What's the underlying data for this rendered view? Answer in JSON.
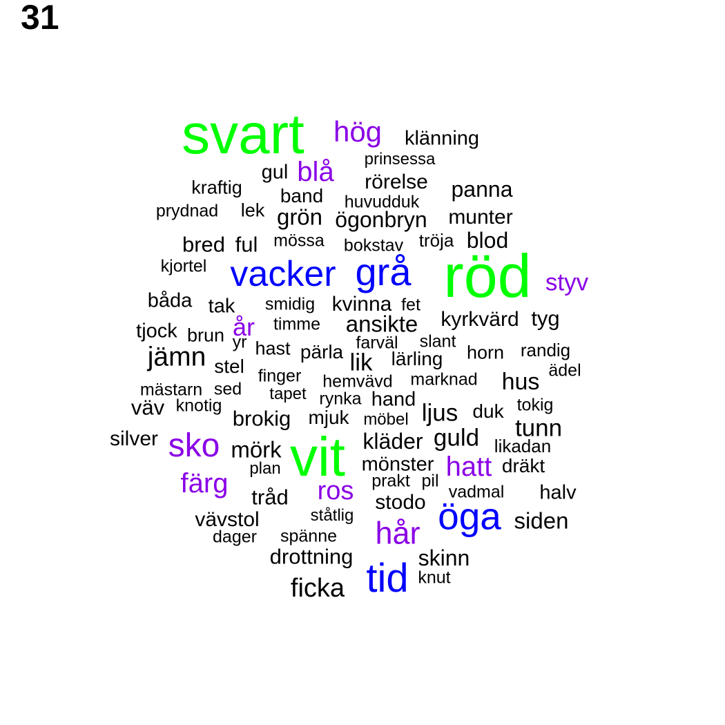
{
  "page_number": "31",
  "palette": {
    "green": "#00ff00",
    "blue": "#0000ff",
    "purple": "#8a00e6",
    "black": "#000000"
  },
  "words": [
    {
      "text": "svart",
      "color": "green"
    },
    {
      "text": "hög",
      "color": "purple"
    },
    {
      "text": "klänning",
      "color": "black"
    },
    {
      "text": "prinsessa",
      "color": "black"
    },
    {
      "text": "gul",
      "color": "black"
    },
    {
      "text": "blå",
      "color": "purple"
    },
    {
      "text": "rörelse",
      "color": "black"
    },
    {
      "text": "panna",
      "color": "black"
    },
    {
      "text": "kraftig",
      "color": "black"
    },
    {
      "text": "band",
      "color": "black"
    },
    {
      "text": "huvudduk",
      "color": "black"
    },
    {
      "text": "prydnad",
      "color": "black"
    },
    {
      "text": "lek",
      "color": "black"
    },
    {
      "text": "grön",
      "color": "black"
    },
    {
      "text": "ögonbryn",
      "color": "black"
    },
    {
      "text": "munter",
      "color": "black"
    },
    {
      "text": "bred",
      "color": "black"
    },
    {
      "text": "ful",
      "color": "black"
    },
    {
      "text": "mössa",
      "color": "black"
    },
    {
      "text": "bokstav",
      "color": "black"
    },
    {
      "text": "tröja",
      "color": "black"
    },
    {
      "text": "blod",
      "color": "black"
    },
    {
      "text": "kjortel",
      "color": "black"
    },
    {
      "text": "vacker",
      "color": "blue"
    },
    {
      "text": "grå",
      "color": "blue"
    },
    {
      "text": "röd",
      "color": "green"
    },
    {
      "text": "styv",
      "color": "purple"
    },
    {
      "text": "båda",
      "color": "black"
    },
    {
      "text": "tak",
      "color": "black"
    },
    {
      "text": "smidig",
      "color": "black"
    },
    {
      "text": "kvinna",
      "color": "black"
    },
    {
      "text": "fet",
      "color": "black"
    },
    {
      "text": "år",
      "color": "purple"
    },
    {
      "text": "timme",
      "color": "black"
    },
    {
      "text": "ansikte",
      "color": "black"
    },
    {
      "text": "kyrkvärd",
      "color": "black"
    },
    {
      "text": "tyg",
      "color": "black"
    },
    {
      "text": "tjock",
      "color": "black"
    },
    {
      "text": "brun",
      "color": "black"
    },
    {
      "text": "yr",
      "color": "black"
    },
    {
      "text": "hast",
      "color": "black"
    },
    {
      "text": "farväl",
      "color": "black"
    },
    {
      "text": "slant",
      "color": "black"
    },
    {
      "text": "pärla",
      "color": "black"
    },
    {
      "text": "lik",
      "color": "black"
    },
    {
      "text": "lärling",
      "color": "black"
    },
    {
      "text": "horn",
      "color": "black"
    },
    {
      "text": "randig",
      "color": "black"
    },
    {
      "text": "jämn",
      "color": "black"
    },
    {
      "text": "stel",
      "color": "black"
    },
    {
      "text": "ädel",
      "color": "black"
    },
    {
      "text": "finger",
      "color": "black"
    },
    {
      "text": "hemvävd",
      "color": "black"
    },
    {
      "text": "marknad",
      "color": "black"
    },
    {
      "text": "hus",
      "color": "black"
    },
    {
      "text": "mästarn",
      "color": "black"
    },
    {
      "text": "sed",
      "color": "black"
    },
    {
      "text": "tapet",
      "color": "black"
    },
    {
      "text": "rynka",
      "color": "black"
    },
    {
      "text": "hand",
      "color": "black"
    },
    {
      "text": "väv",
      "color": "black"
    },
    {
      "text": "knotig",
      "color": "black"
    },
    {
      "text": "tokig",
      "color": "black"
    },
    {
      "text": "ljus",
      "color": "black"
    },
    {
      "text": "duk",
      "color": "black"
    },
    {
      "text": "brokig",
      "color": "black"
    },
    {
      "text": "mjuk",
      "color": "black"
    },
    {
      "text": "möbel",
      "color": "black"
    },
    {
      "text": "tunn",
      "color": "black"
    },
    {
      "text": "silver",
      "color": "black"
    },
    {
      "text": "sko",
      "color": "purple"
    },
    {
      "text": "kläder",
      "color": "black"
    },
    {
      "text": "guld",
      "color": "black"
    },
    {
      "text": "likadan",
      "color": "black"
    },
    {
      "text": "mörk",
      "color": "black"
    },
    {
      "text": "vit",
      "color": "green"
    },
    {
      "text": "mönster",
      "color": "black"
    },
    {
      "text": "hatt",
      "color": "purple"
    },
    {
      "text": "dräkt",
      "color": "black"
    },
    {
      "text": "plan",
      "color": "black"
    },
    {
      "text": "färg",
      "color": "purple"
    },
    {
      "text": "prakt",
      "color": "black"
    },
    {
      "text": "pil",
      "color": "black"
    },
    {
      "text": "ros",
      "color": "purple"
    },
    {
      "text": "vadmal",
      "color": "black"
    },
    {
      "text": "halv",
      "color": "black"
    },
    {
      "text": "tråd",
      "color": "black"
    },
    {
      "text": "stodo",
      "color": "black"
    },
    {
      "text": "öga",
      "color": "blue"
    },
    {
      "text": "ståtlig",
      "color": "black"
    },
    {
      "text": "vävstol",
      "color": "black"
    },
    {
      "text": "siden",
      "color": "black"
    },
    {
      "text": "hår",
      "color": "purple"
    },
    {
      "text": "dager",
      "color": "black"
    },
    {
      "text": "spänne",
      "color": "black"
    },
    {
      "text": "drottning",
      "color": "black"
    },
    {
      "text": "skinn",
      "color": "black"
    },
    {
      "text": "tid",
      "color": "blue"
    },
    {
      "text": "knut",
      "color": "black"
    },
    {
      "text": "ficka",
      "color": "black"
    }
  ]
}
